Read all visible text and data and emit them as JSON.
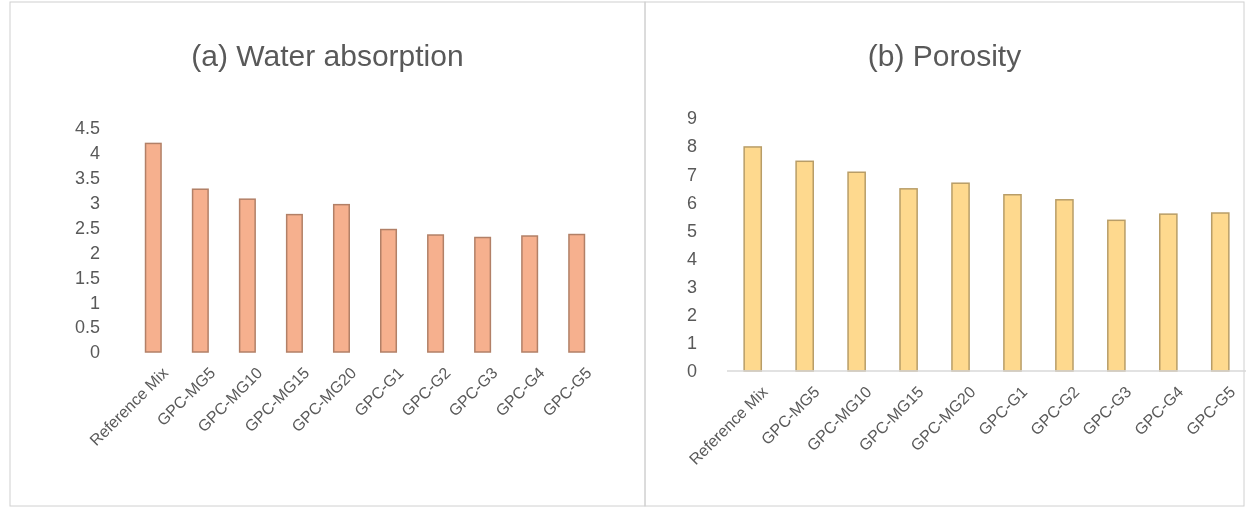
{
  "chart_data": [
    {
      "type": "bar",
      "title": "(a) Water absorption",
      "categories": [
        "Reference Mix",
        "GPC-MG5",
        "GPC-MG10",
        "GPC-MG15",
        "GPC-MG20",
        "GPC-G1",
        "GPC-G2",
        "GPC-G3",
        "GPC-G4",
        "GPC-G5"
      ],
      "values": [
        4.19,
        3.27,
        3.07,
        2.76,
        2.96,
        2.46,
        2.35,
        2.3,
        2.33,
        2.36
      ],
      "color": "#f6b08e",
      "ylim": [
        0,
        4.5
      ],
      "yticks": [
        0,
        0.5,
        1,
        1.5,
        2,
        2.5,
        3,
        3.5,
        4,
        4.5
      ]
    },
    {
      "type": "bar",
      "title": "(b) Porosity",
      "categories": [
        "Reference Mix",
        "GPC-MG5",
        "GPC-MG10",
        "GPC-MG15",
        "GPC-MG20",
        "GPC-G1",
        "GPC-G2",
        "GPC-G3",
        "GPC-G4",
        "GPC-G5"
      ],
      "values": [
        7.97,
        7.46,
        7.07,
        6.48,
        6.68,
        6.27,
        6.09,
        5.36,
        5.58,
        5.62
      ],
      "color": "#fed98e",
      "ylim": [
        0,
        9
      ],
      "yticks": [
        0,
        1,
        2,
        3,
        4,
        5,
        6,
        7,
        8,
        9
      ]
    }
  ]
}
